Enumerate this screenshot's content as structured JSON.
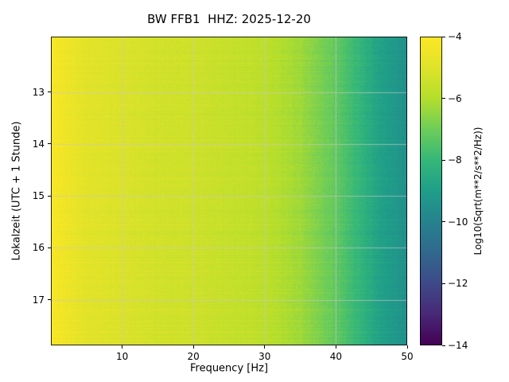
{
  "figure": {
    "background": "#ffffff"
  },
  "chart_data": {
    "type": "heatmap",
    "title": "BW FFB1  HHZ: 2025-12-20",
    "xlabel": "Frequency [Hz]",
    "ylabel": "Lokalzeit (UTC + 1 Stunde)",
    "x_range": [
      0,
      50
    ],
    "y_range": [
      11.93,
      17.88
    ],
    "x_ticks": [
      10,
      20,
      30,
      40,
      50
    ],
    "y_ticks": [
      13,
      14,
      15,
      16,
      17
    ],
    "grid": true,
    "grid_color": "#c8c8c8",
    "colormap": "viridis",
    "colorbar": {
      "label": "Log10(Sqrt(m**2/s**2/Hz))",
      "vmin": -14,
      "vmax": -4,
      "ticks": [
        {
          "label": "−4",
          "value": -4
        },
        {
          "label": "−6",
          "value": -6
        },
        {
          "label": "−8",
          "value": -8
        },
        {
          "label": "−10",
          "value": -10
        },
        {
          "label": "−12",
          "value": -12
        },
        {
          "label": "−14",
          "value": -14
        }
      ]
    },
    "spectral_profile": {
      "freq_hz": [
        0,
        1,
        3,
        5,
        10,
        15,
        20,
        25,
        30,
        35,
        40,
        43,
        46,
        50
      ],
      "log10_amplitude": [
        -4.2,
        -4.3,
        -4.6,
        -4.9,
        -5.1,
        -5.3,
        -5.4,
        -5.6,
        -5.8,
        -6.3,
        -7.2,
        -8.0,
        -8.8,
        -9.5
      ]
    },
    "noise": {
      "row_sigma": 0.11,
      "pixel_sigma": 0.17,
      "column_sigma": 0.06
    }
  }
}
